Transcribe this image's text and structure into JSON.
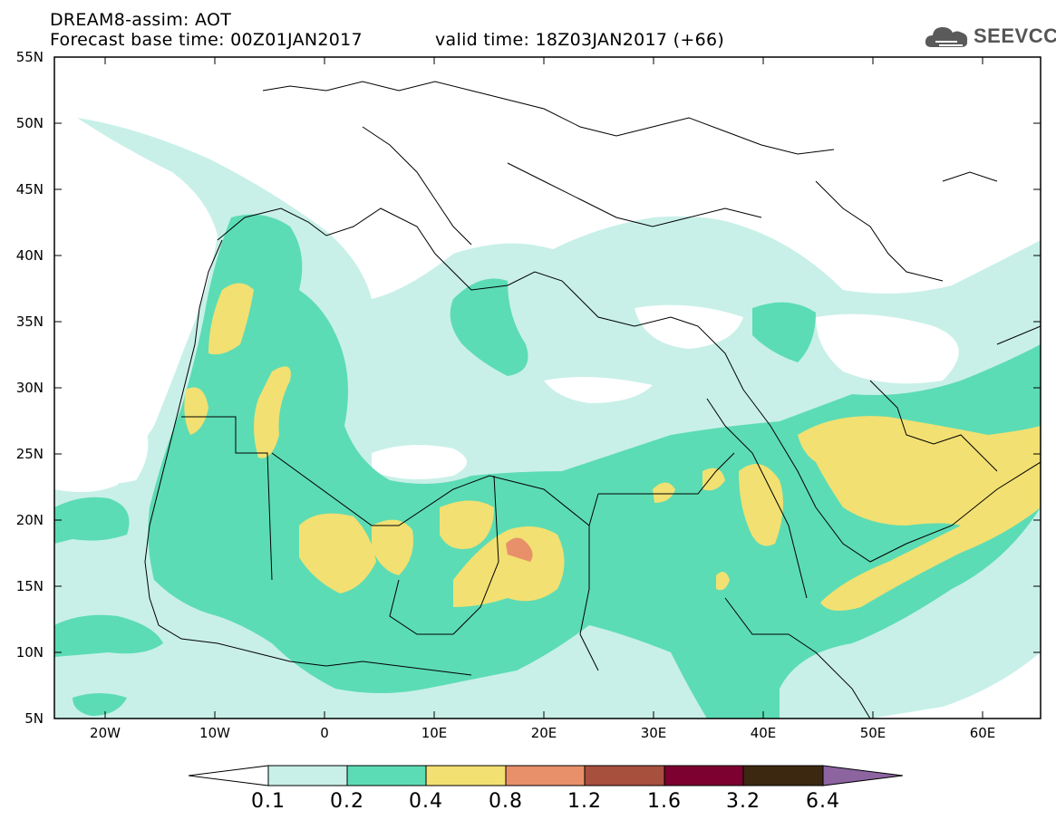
{
  "header": {
    "title": "DREAM8-assim: AOT",
    "base_time": "Forecast base time: 00Z01JAN2017",
    "valid_time": "valid time: 18Z03JAN2017 (+66)"
  },
  "logo": {
    "text": "SEEVCCC",
    "icon": "cloud-icon"
  },
  "lat_labels": [
    "55N",
    "50N",
    "45N",
    "40N",
    "35N",
    "30N",
    "25N",
    "20N",
    "15N",
    "10N",
    "5N"
  ],
  "lon_labels": [
    "20W",
    "10W",
    "0",
    "10E",
    "20E",
    "30E",
    "40E",
    "50E",
    "60E"
  ],
  "colorbar": {
    "labels": [
      "0.1",
      "0.2",
      "0.4",
      "0.8",
      "1.2",
      "1.6",
      "3.2",
      "6.4"
    ],
    "colors": [
      "#c8f0e8",
      "#5cdcb4",
      "#f2e072",
      "#e8906a",
      "#a8503e",
      "#7c0030",
      "#3c2810",
      "#8c64a0"
    ]
  }
}
